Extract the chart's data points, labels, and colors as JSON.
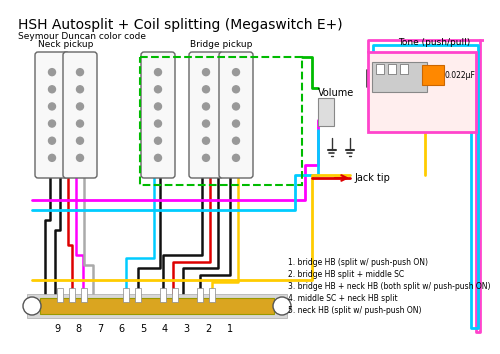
{
  "title": "HSH Autosplit + Coil splitting (Megaswitch E+)",
  "subtitle": "Seymour Duncan color code",
  "title_fontsize": 10,
  "subtitle_fontsize": 6.5,
  "bg_color": "#ffffff",
  "legend_items": [
    "1. bridge HB (split w/ push-push ON)",
    "2. bridge HB split + middle SC",
    "3. bridge HB + neck HB (both split w/ push-push ON)",
    "4. middle SC + neck HB split",
    "5. neck HB (split w/ push-push ON)"
  ],
  "switch_numbers": [
    "9",
    "8",
    "7",
    "6",
    "5",
    "4",
    "3",
    "2",
    "1"
  ],
  "tone_label": "Tone (push/pull)",
  "volume_label": "Volume",
  "jacktip_label": "Jack tip",
  "cap_label": "0.022μF",
  "c_black": "#111111",
  "c_red": "#dd0000",
  "c_green": "#00bb00",
  "c_magenta": "#ff00ff",
  "c_cyan": "#00ccff",
  "c_yellow": "#ffcc00",
  "c_gray": "#aaaaaa",
  "c_white": "#eeeeee",
  "c_orange": "#ff8800",
  "c_pink": "#ff44cc"
}
